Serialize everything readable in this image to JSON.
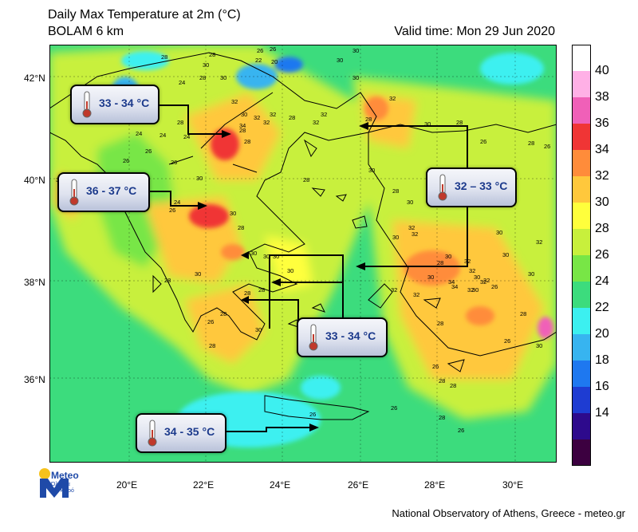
{
  "header": {
    "title": "Daily Max Temperature at 2m (°C)",
    "model": "BOLAM 6 km",
    "valid_time": "Valid time: Mon 29 Jun 2020"
  },
  "axes": {
    "lat_labels": [
      "42°N",
      "40°N",
      "38°N",
      "36°N"
    ],
    "lon_labels": [
      "20°E",
      "22°E",
      "24°E",
      "26°E",
      "28°E",
      "30°E"
    ]
  },
  "legend": {
    "labels": [
      "40",
      "38",
      "36",
      "34",
      "32",
      "30",
      "28",
      "26",
      "24",
      "22",
      "20",
      "18",
      "16",
      "14"
    ],
    "colors": [
      "#ffffff",
      "#ffb0e6",
      "#f060b8",
      "#f03535",
      "#ff8c3a",
      "#ffc83c",
      "#ffff3c",
      "#c8f03c",
      "#78e646",
      "#3cdc7d",
      "#3cf0f0",
      "#37b4f0",
      "#1e78f0",
      "#1e3cd2",
      "#2d0a8c",
      "#3c0040"
    ]
  },
  "callouts": [
    {
      "id": "north",
      "text": "33 - 34 °C"
    },
    {
      "id": "west",
      "text": "36 - 37 °C"
    },
    {
      "id": "east",
      "text": "32 – 33 °C"
    },
    {
      "id": "central",
      "text": "33 - 34 °C"
    },
    {
      "id": "crete",
      "text": "34 - 35 °C"
    }
  ],
  "map_numbers": [
    "28",
    "28",
    "26",
    "22",
    "20",
    "26",
    "30",
    "30",
    "28",
    "30",
    "24",
    "28",
    "30",
    "28",
    "28",
    "32",
    "32",
    "32",
    "28",
    "30",
    "34",
    "32",
    "32",
    "32",
    "30",
    "32",
    "28",
    "30",
    "28",
    "26",
    "26",
    "28",
    "26",
    "24",
    "24",
    "24",
    "26",
    "30",
    "26",
    "24",
    "26",
    "32",
    "30",
    "28",
    "28",
    "30",
    "28",
    "30",
    "32",
    "30",
    "32",
    "34",
    "30",
    "30",
    "26",
    "28",
    "32",
    "30",
    "30",
    "30",
    "30",
    "30",
    "30",
    "28",
    "32",
    "32",
    "32",
    "32",
    "32",
    "32",
    "34",
    "32",
    "30",
    "30",
    "30",
    "30",
    "28",
    "28",
    "30",
    "28",
    "26",
    "28",
    "30",
    "28",
    "26",
    "28",
    "28",
    "28",
    "26",
    "26",
    "26",
    "26",
    "28"
  ],
  "logo": {
    "name": "Meteo",
    "tagline_1": "Όλα για",
    "tagline_2": "τον καιρό"
  },
  "credit": "National Observatory of Athens, Greece - meteo.gr"
}
